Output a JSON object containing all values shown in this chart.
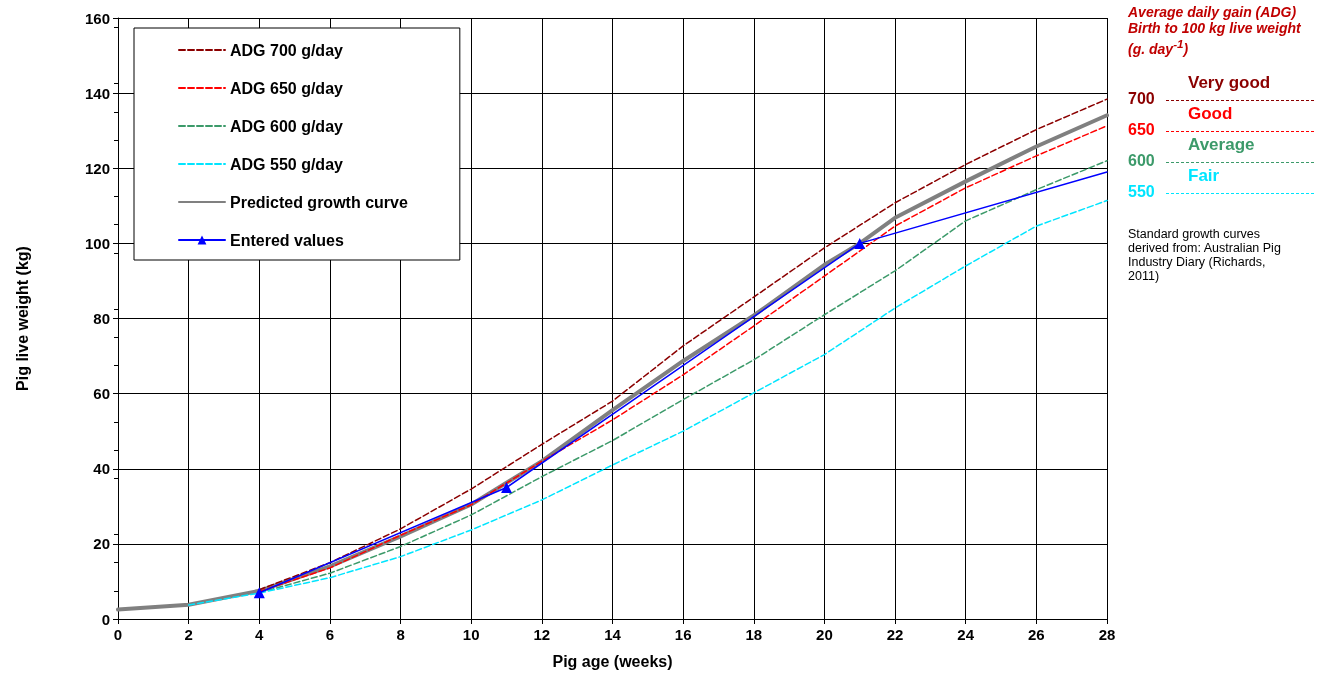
{
  "chart_data": {
    "type": "line",
    "xlabel": "Pig age (weeks)",
    "ylabel": "Pig live weight (kg)",
    "xlim": [
      0,
      28
    ],
    "xticks": [
      0,
      2,
      4,
      6,
      8,
      10,
      12,
      14,
      16,
      18,
      20,
      22,
      24,
      26,
      28
    ],
    "ylim": [
      0,
      160
    ],
    "yticks": [
      0,
      20,
      40,
      60,
      80,
      100,
      120,
      140,
      160
    ],
    "grid": true,
    "legend": "top left",
    "series": [
      {
        "name": "ADG 700 g/day",
        "color": "#8b0000",
        "line_style": "dashed",
        "marker": "none",
        "x": [
          4,
          6,
          8,
          10,
          12,
          14,
          16,
          18,
          20,
          22,
          24,
          26,
          28
        ],
        "values": [
          7.8,
          15,
          24,
          34.6,
          46.5,
          58,
          72.7,
          85.7,
          98.8,
          110.8,
          121,
          130.3,
          138.4
        ]
      },
      {
        "name": "ADG 650 g/day",
        "color": "#ff0000",
        "line_style": "dashed",
        "marker": "none",
        "x": [
          4,
          6,
          8,
          10,
          12,
          14,
          16,
          18,
          20,
          22,
          24,
          26,
          28
        ],
        "values": [
          7.3,
          13.6,
          22.3,
          30.4,
          42,
          53,
          65,
          78,
          91.3,
          104.6,
          114.8,
          123.3,
          131.3
        ]
      },
      {
        "name": "ADG 600 g/day",
        "color": "#3c9a6a",
        "line_style": "dashed",
        "marker": "none",
        "x": [
          4,
          6,
          8,
          10,
          12,
          14,
          16,
          18,
          20,
          22,
          24,
          26,
          28
        ],
        "values": [
          7,
          12.2,
          19.3,
          27.7,
          37.9,
          47.5,
          58.4,
          69,
          81,
          92.7,
          106,
          114.3,
          122
        ]
      },
      {
        "name": "ADG 550 g/day",
        "color": "#00e5ff",
        "line_style": "dashed",
        "marker": "none",
        "x": [
          2,
          4,
          6,
          8,
          10,
          12,
          14,
          16,
          18,
          20,
          22,
          24,
          26,
          28
        ],
        "values": [
          3.7,
          6.9,
          11,
          16.6,
          23.7,
          31.7,
          41,
          50,
          60.2,
          70.4,
          82.8,
          94,
          104.6,
          111.4
        ]
      },
      {
        "name": "Predicted growth curve",
        "color": "#808080",
        "line_style": "solid",
        "marker": "none",
        "x": [
          0,
          2,
          4,
          6,
          8,
          10,
          12,
          14,
          16,
          18,
          20,
          21,
          22,
          24,
          26,
          28
        ],
        "values": [
          2.5,
          3.8,
          7.5,
          14,
          22,
          30.5,
          42,
          55.6,
          68.7,
          80.8,
          94.3,
          100,
          106.8,
          116.5,
          125.8,
          134.1
        ]
      },
      {
        "name": "Entered values",
        "color": "#0000ff",
        "line_style": "solid",
        "marker": "triangle",
        "x": [
          4,
          11,
          21
        ],
        "values": [
          7,
          35,
          100
        ]
      },
      {
        "color": "#0000ff",
        "line_style": "solid",
        "marker": "none",
        "x": [
          21,
          28
        ],
        "values": [
          100,
          119
        ]
      }
    ],
    "annotations": [
      "Average daily gain (ADG) Birth to 100 kg live weight (g. day$^{-1}$)",
      "700",
      "Very good",
      "650",
      "Good",
      "600",
      "Average",
      "550",
      "Fair",
      "Standard growth curves derived from: Australian Pig Industry Diary (Richards, 2011)"
    ]
  }
}
